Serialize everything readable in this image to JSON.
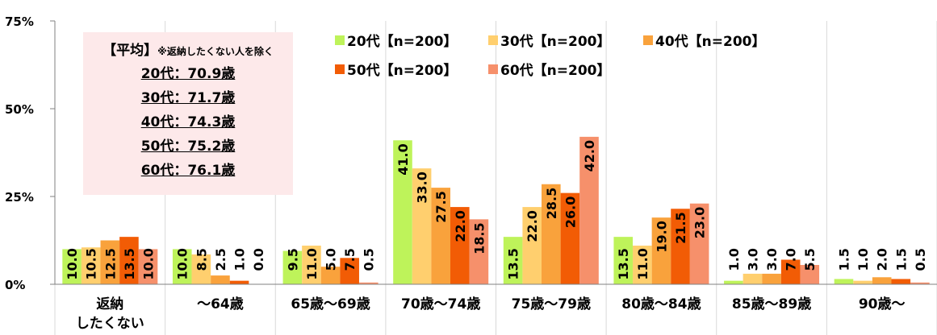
{
  "colors": {
    "s20": "#bef35a",
    "s30": "#ffcf6e",
    "s40": "#f9a23c",
    "s50": "#f25c05",
    "s60": "#f6906b",
    "grid": "#d9d9d9",
    "axis": "#808080",
    "box_bg": "#fde9ea"
  },
  "average_box": {
    "title": "【平均】",
    "note": "※返納したくない人を除く",
    "lines": [
      "20代：70.9歳",
      "30代：71.7歳",
      "40代：74.3歳",
      "50代：75.2歳",
      "60代：76.1歳"
    ]
  },
  "chart_data": {
    "type": "bar",
    "categories": [
      "返納\nしたくない",
      "～64歳",
      "65歳～69歳",
      "70歳～74歳",
      "75歳～79歳",
      "80歳～84歳",
      "85歳～89歳",
      "90歳～"
    ],
    "series": [
      {
        "name": "20代【n=200】",
        "values": [
          10.0,
          10.0,
          9.5,
          41.0,
          13.5,
          13.5,
          1.0,
          1.5
        ]
      },
      {
        "name": "30代【n=200】",
        "values": [
          10.5,
          8.5,
          11.0,
          33.0,
          22.0,
          11.0,
          3.0,
          1.0
        ]
      },
      {
        "name": "40代【n=200】",
        "values": [
          12.5,
          2.5,
          5.0,
          27.5,
          28.5,
          19.0,
          3.0,
          2.0
        ]
      },
      {
        "name": "50代【n=200】",
        "values": [
          13.5,
          1.0,
          7.5,
          22.0,
          26.0,
          21.5,
          7.0,
          1.5
        ]
      },
      {
        "name": "60代【n=200】",
        "values": [
          10.0,
          0.0,
          0.5,
          18.5,
          42.0,
          23.0,
          5.5,
          0.5
        ]
      }
    ],
    "series_colors": [
      "#bef35a",
      "#ffcf6e",
      "#f9a23c",
      "#f25c05",
      "#f6906b"
    ],
    "ylim": [
      0,
      75
    ],
    "yticks": [
      "0%",
      "25%",
      "50%",
      "75%"
    ],
    "ytick_values": [
      0,
      25,
      50,
      75
    ],
    "grid": "vertical category separators",
    "legend": "top-right"
  }
}
